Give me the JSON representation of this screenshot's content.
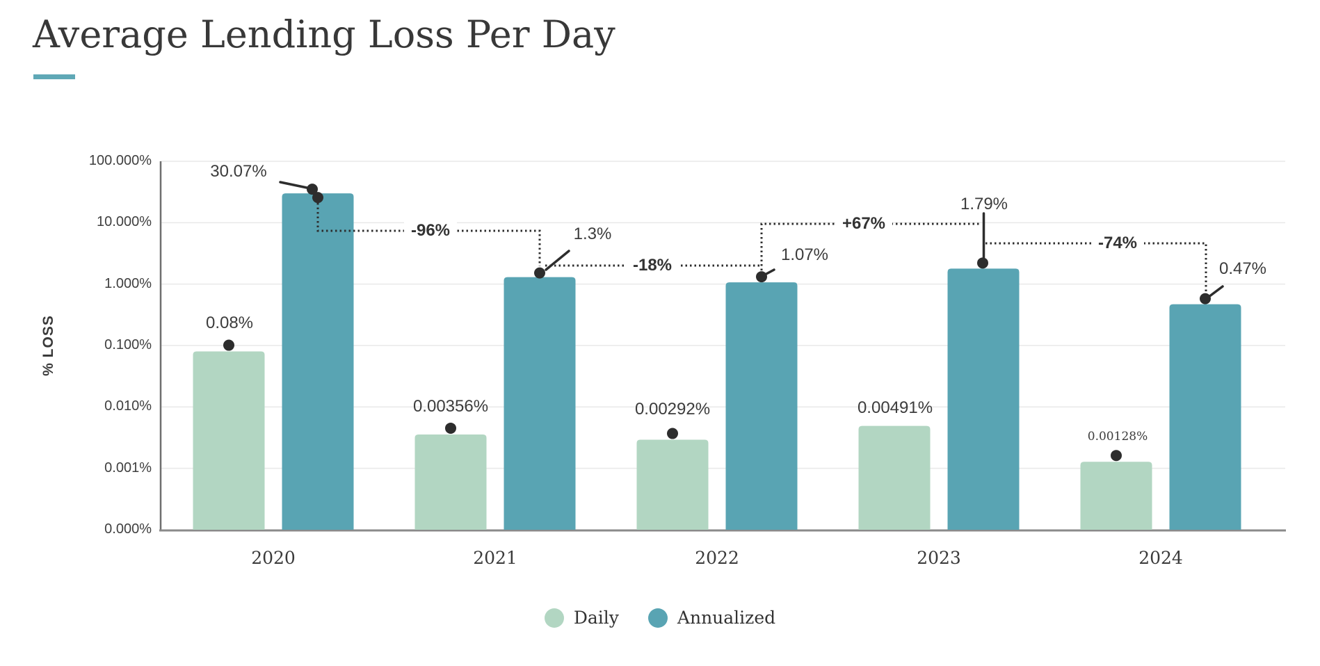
{
  "header": {
    "title": "Average Lending Loss Per Day",
    "accent_color": "#5fa8b6"
  },
  "chart_data": {
    "type": "bar",
    "title": "Average Lending Loss Per Day",
    "ylabel": "% LOSS",
    "y_scale": "log",
    "grid": "horizontal",
    "y_ticks": [
      "100.000%",
      "10.000%",
      "1.000%",
      "0.100%",
      "0.010%",
      "0.001%",
      "0.000%"
    ],
    "categories": [
      "2020",
      "2021",
      "2022",
      "2023",
      "2024"
    ],
    "series": [
      {
        "name": "Daily",
        "color": "#b2d6c2",
        "values": [
          0.08,
          0.00356,
          0.00292,
          0.00491,
          0.00128
        ],
        "labels": [
          "0.08%",
          "0.00356%",
          "0.00292%",
          "0.00491%",
          "0.00128%"
        ]
      },
      {
        "name": "Annualized",
        "color": "#59a4b3",
        "values": [
          30.07,
          1.3,
          1.07,
          1.79,
          0.47
        ],
        "labels": [
          "30.07%",
          "1.3%",
          "1.07%",
          "1.79%",
          "0.47%"
        ]
      }
    ],
    "changes": [
      {
        "from": "2020",
        "to": "2021",
        "label": "-96%"
      },
      {
        "from": "2021",
        "to": "2022",
        "label": "-18%"
      },
      {
        "from": "2022",
        "to": "2023",
        "label": "+67%"
      },
      {
        "from": "2023",
        "to": "2024",
        "label": "-74%"
      }
    ],
    "legend_position": "bottom",
    "marker_color": "#2d2d2d",
    "gridline_color": "#e9e9e9",
    "axis_color": "#8a8a8a"
  }
}
